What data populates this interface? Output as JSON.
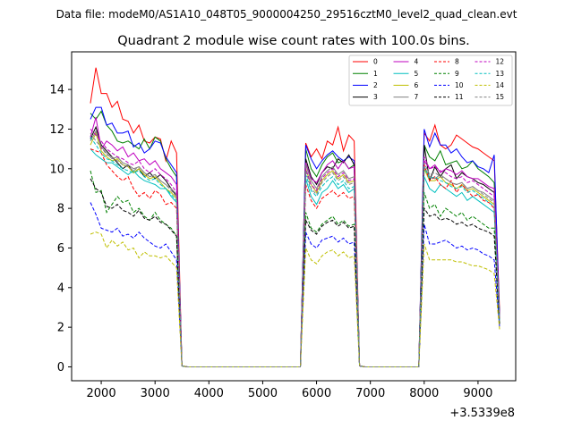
{
  "suptitle": "Data file: modeM0/AS1A10_048T05_9000004250_29516cztM0_level2_quad_clean.evt",
  "chart_data": {
    "type": "line",
    "title": "Quadrant 2 module wise count rates with 100.0s bins.",
    "xlabel": "",
    "ylabel": "",
    "x_offset_label": "+3.5339e8",
    "xlim": [
      1450,
      9700
    ],
    "ylim": [
      -0.7,
      15.9
    ],
    "xticks": [
      2000,
      3000,
      4000,
      5000,
      6000,
      7000,
      8000,
      9000
    ],
    "yticks": [
      0,
      2,
      4,
      6,
      8,
      10,
      12,
      14
    ],
    "legend_position": "top-right",
    "x": [
      1800,
      1900,
      2000,
      2100,
      2200,
      2300,
      2400,
      2500,
      2600,
      2700,
      2800,
      2900,
      3000,
      3100,
      3200,
      3300,
      3400,
      3500,
      3600,
      3700,
      5700,
      5800,
      5900,
      6000,
      6100,
      6200,
      6300,
      6400,
      6500,
      6600,
      6700,
      6800,
      6900,
      7000,
      7900,
      8000,
      8100,
      8200,
      8300,
      8400,
      8500,
      8600,
      8700,
      8800,
      8900,
      9000,
      9100,
      9200,
      9300,
      9400
    ],
    "series": [
      {
        "name": "0",
        "color": "#ff0000",
        "dash": "solid",
        "values": [
          13.3,
          15.1,
          13.8,
          13.8,
          13.1,
          13.4,
          12.5,
          12.4,
          11.8,
          12.2,
          11.4,
          11.3,
          11.6,
          11.5,
          10.4,
          11.4,
          10.8,
          0.05,
          0,
          0,
          0,
          11.3,
          10.6,
          11.0,
          10.5,
          11.4,
          11.2,
          12.1,
          10.9,
          11.7,
          11.4,
          0.05,
          0,
          0,
          0,
          11.8,
          11.4,
          12.2,
          11.2,
          11.0,
          11.2,
          11.7,
          11.5,
          11.3,
          11.1,
          11.0,
          10.8,
          10.6,
          10.4,
          2.8
        ]
      },
      {
        "name": "1",
        "color": "#008000",
        "dash": "solid",
        "values": [
          12.8,
          12.5,
          12.9,
          12.2,
          11.9,
          11.4,
          11.3,
          11.4,
          11.2,
          11.0,
          11.5,
          11.0,
          11.6,
          11.4,
          10.5,
          10.0,
          9.6,
          0.05,
          0,
          0,
          0,
          11.0,
          10.0,
          9.6,
          10.2,
          10.6,
          10.8,
          10.3,
          10.4,
          10.0,
          10.2,
          0.05,
          0,
          0,
          0,
          11.2,
          10.6,
          10.4,
          10.9,
          10.2,
          10.3,
          10.4,
          10.0,
          10.1,
          10.4,
          10.0,
          9.8,
          9.6,
          9.3,
          2.6
        ]
      },
      {
        "name": "2",
        "color": "#0000ff",
        "dash": "solid",
        "values": [
          12.5,
          13.1,
          13.1,
          12.2,
          12.3,
          11.8,
          11.8,
          11.9,
          11.1,
          11.3,
          10.8,
          11.0,
          11.4,
          11.3,
          10.6,
          10.2,
          9.8,
          0.05,
          0,
          0,
          0,
          11.2,
          10.5,
          10.0,
          10.4,
          10.7,
          10.9,
          10.6,
          10.4,
          10.6,
          10.4,
          0.05,
          0,
          0,
          0,
          12.0,
          11.1,
          11.8,
          11.2,
          11.2,
          10.8,
          11.0,
          10.6,
          10.3,
          10.4,
          10.1,
          10.0,
          9.8,
          10.7,
          2.5
        ]
      },
      {
        "name": "3",
        "color": "#000000",
        "dash": "solid",
        "values": [
          11.5,
          12.1,
          11.2,
          10.9,
          10.6,
          10.3,
          10.0,
          10.2,
          9.8,
          10.0,
          9.6,
          9.8,
          9.5,
          9.7,
          9.4,
          9.0,
          8.6,
          0.05,
          0,
          0,
          0,
          10.5,
          9.6,
          9.2,
          9.8,
          10.1,
          10.0,
          10.5,
          10.3,
          10.7,
          10.2,
          0.05,
          0,
          0,
          0,
          11.2,
          9.4,
          10.1,
          9.6,
          10.0,
          10.2,
          9.5,
          9.8,
          9.6,
          9.5,
          9.3,
          9.2,
          9.0,
          8.8,
          2.4
        ]
      },
      {
        "name": "4",
        "color": "#bf00bf",
        "dash": "solid",
        "values": [
          11.6,
          12.6,
          11.0,
          11.4,
          11.2,
          10.9,
          11.1,
          10.6,
          10.8,
          10.4,
          10.5,
          10.2,
          10.4,
          10.0,
          9.8,
          9.6,
          9.2,
          0.05,
          0,
          0,
          0,
          10.3,
          9.5,
          9.3,
          9.8,
          10.2,
          10.4,
          10.0,
          10.4,
          10.0,
          10.1,
          0.05,
          0,
          0,
          0,
          10.4,
          10.0,
          10.2,
          9.8,
          10.0,
          9.9,
          9.7,
          9.9,
          9.6,
          9.5,
          9.5,
          9.3,
          9.1,
          9.0,
          2.5
        ]
      },
      {
        "name": "5",
        "color": "#00bfbf",
        "dash": "solid",
        "values": [
          11.0,
          10.7,
          10.5,
          10.3,
          10.3,
          10.1,
          9.9,
          9.7,
          9.9,
          9.6,
          9.4,
          9.3,
          9.2,
          9.0,
          9.0,
          8.6,
          8.3,
          0.05,
          0,
          0,
          0,
          9.5,
          8.6,
          8.2,
          8.8,
          9.0,
          9.4,
          9.0,
          9.2,
          8.8,
          9.0,
          0.05,
          0,
          0,
          0,
          9.6,
          9.0,
          8.8,
          9.2,
          9.0,
          8.8,
          8.6,
          8.8,
          8.4,
          8.6,
          8.4,
          8.2,
          8.0,
          7.8,
          2.3
        ]
      },
      {
        "name": "6",
        "color": "#bfbf00",
        "dash": "solid",
        "values": [
          11.2,
          11.8,
          10.9,
          10.6,
          10.4,
          10.5,
          10.2,
          10.1,
          9.8,
          10.0,
          9.7,
          9.5,
          9.6,
          9.3,
          9.0,
          8.8,
          8.5,
          0.05,
          0,
          0,
          0,
          10.0,
          9.2,
          8.8,
          9.4,
          9.7,
          9.9,
          9.5,
          9.7,
          9.3,
          9.4,
          0.05,
          0,
          0,
          0,
          10.0,
          9.4,
          9.4,
          9.6,
          9.3,
          9.2,
          9.0,
          9.2,
          8.9,
          9.0,
          8.8,
          8.6,
          8.4,
          8.2,
          2.3
        ]
      },
      {
        "name": "7",
        "color": "#808080",
        "dash": "solid",
        "values": [
          11.4,
          11.9,
          11.1,
          10.8,
          10.5,
          10.6,
          10.3,
          10.2,
          10.0,
          10.1,
          9.8,
          9.6,
          9.7,
          9.4,
          9.2,
          9.0,
          8.7,
          0.05,
          0,
          0,
          0,
          10.2,
          9.4,
          9.0,
          9.6,
          9.9,
          10.1,
          9.7,
          9.9,
          9.5,
          9.6,
          0.05,
          0,
          0,
          0,
          10.1,
          9.6,
          9.5,
          9.7,
          9.5,
          9.3,
          9.2,
          9.3,
          9.0,
          9.1,
          8.9,
          8.8,
          8.6,
          8.4,
          2.4
        ]
      },
      {
        "name": "8",
        "color": "#ff0000",
        "dash": "dashed",
        "values": [
          11.0,
          10.9,
          10.8,
          10.2,
          9.9,
          9.6,
          9.4,
          9.6,
          9.0,
          8.6,
          8.8,
          8.5,
          8.9,
          8.7,
          8.2,
          8.3,
          8.0,
          0.05,
          0,
          0,
          0,
          9.2,
          8.4,
          8.0,
          8.5,
          8.7,
          8.9,
          8.6,
          8.8,
          8.5,
          8.6,
          0.05,
          0,
          0,
          0,
          10.2,
          9.4,
          9.6,
          9.2,
          9.0,
          9.4,
          8.8,
          9.2,
          8.9,
          8.6,
          8.7,
          8.4,
          8.3,
          8.0,
          2.3
        ]
      },
      {
        "name": "9",
        "color": "#008000",
        "dash": "dashed",
        "values": [
          9.9,
          8.8,
          8.9,
          7.8,
          8.2,
          8.6,
          8.3,
          8.4,
          7.8,
          8.0,
          7.6,
          7.4,
          7.8,
          7.4,
          7.2,
          7.0,
          6.6,
          0.05,
          0,
          0,
          0,
          7.8,
          7.0,
          6.8,
          7.2,
          7.4,
          7.6,
          7.2,
          7.4,
          7.1,
          7.2,
          0.05,
          0,
          0,
          0,
          8.8,
          8.0,
          8.2,
          7.6,
          8.0,
          7.8,
          7.6,
          7.8,
          7.4,
          7.6,
          7.4,
          7.2,
          7.0,
          7.0,
          2.2
        ]
      },
      {
        "name": "10",
        "color": "#0000ff",
        "dash": "dashed",
        "values": [
          8.3,
          7.7,
          7.0,
          6.9,
          6.8,
          7.0,
          6.6,
          6.7,
          6.5,
          6.8,
          6.5,
          6.3,
          6.1,
          6.0,
          6.2,
          5.8,
          5.4,
          0.05,
          0,
          0,
          0,
          6.8,
          6.2,
          6.0,
          6.4,
          6.5,
          6.6,
          6.3,
          6.5,
          6.2,
          6.3,
          0.05,
          0,
          0,
          0,
          7.2,
          6.2,
          6.2,
          6.3,
          6.4,
          6.2,
          6.0,
          6.1,
          5.9,
          6.0,
          5.9,
          5.7,
          5.6,
          5.4,
          2.0
        ]
      },
      {
        "name": "11",
        "color": "#000000",
        "dash": "dashed",
        "values": [
          9.5,
          9.0,
          8.8,
          8.1,
          8.0,
          8.2,
          7.9,
          7.8,
          7.6,
          7.9,
          7.5,
          7.4,
          7.6,
          7.3,
          7.2,
          6.9,
          6.6,
          0.05,
          0,
          0,
          0,
          7.4,
          6.9,
          6.7,
          7.1,
          7.3,
          7.4,
          7.1,
          7.3,
          7.0,
          7.1,
          0.05,
          0,
          0,
          0,
          8.0,
          7.6,
          7.7,
          7.4,
          7.5,
          7.4,
          7.2,
          7.3,
          7.1,
          7.2,
          7.0,
          6.9,
          6.8,
          6.6,
          2.1
        ]
      },
      {
        "name": "12",
        "color": "#bf00bf",
        "dash": "dashed",
        "values": [
          12.0,
          11.7,
          11.4,
          11.0,
          10.8,
          10.6,
          10.5,
          10.3,
          10.2,
          10.4,
          10.0,
          9.8,
          10.0,
          9.7,
          9.5,
          9.2,
          8.8,
          0.05,
          0,
          0,
          0,
          10.0,
          9.2,
          8.9,
          9.5,
          9.8,
          10.0,
          9.6,
          9.8,
          9.4,
          9.5,
          0.05,
          0,
          0,
          0,
          10.6,
          10.0,
          10.1,
          9.9,
          9.8,
          9.6,
          9.5,
          9.6,
          9.3,
          9.4,
          9.2,
          9.0,
          8.8,
          8.6,
          2.4
        ]
      },
      {
        "name": "13",
        "color": "#00bfbf",
        "dash": "dashed",
        "values": [
          11.6,
          11.2,
          10.8,
          10.5,
          10.4,
          10.2,
          10.0,
          9.9,
          9.8,
          9.9,
          9.6,
          9.4,
          9.5,
          9.2,
          9.0,
          8.7,
          8.4,
          0.05,
          0,
          0,
          0,
          9.7,
          8.9,
          8.6,
          9.1,
          9.4,
          9.6,
          9.2,
          9.4,
          9.0,
          9.1,
          0.05,
          0,
          0,
          0,
          10.1,
          9.5,
          9.6,
          9.4,
          9.3,
          9.1,
          9.0,
          9.1,
          8.8,
          8.9,
          8.7,
          8.5,
          8.3,
          8.1,
          2.3
        ]
      },
      {
        "name": "14",
        "color": "#bfbf00",
        "dash": "dashed",
        "values": [
          6.7,
          6.8,
          6.7,
          6.0,
          6.4,
          6.1,
          6.3,
          5.9,
          6.0,
          5.5,
          5.8,
          5.6,
          5.6,
          5.5,
          5.6,
          5.3,
          5.0,
          0.05,
          0,
          0,
          0,
          6.0,
          5.4,
          5.2,
          5.6,
          5.8,
          5.9,
          5.6,
          5.8,
          5.5,
          5.6,
          0.05,
          0,
          0,
          0,
          6.2,
          5.4,
          5.4,
          5.4,
          5.4,
          5.4,
          5.3,
          5.3,
          5.2,
          5.1,
          5.1,
          5.0,
          4.9,
          4.7,
          1.9
        ]
      },
      {
        "name": "15",
        "color": "#808080",
        "dash": "dashed",
        "values": [
          11.8,
          11.4,
          11.1,
          10.7,
          10.6,
          10.4,
          10.2,
          10.1,
          9.9,
          10.1,
          9.8,
          9.6,
          9.7,
          9.4,
          9.2,
          8.9,
          8.6,
          0.05,
          0,
          0,
          0,
          9.9,
          9.0,
          8.7,
          9.3,
          9.6,
          9.8,
          9.4,
          9.6,
          9.2,
          9.3,
          0.05,
          0,
          0,
          0,
          10.3,
          9.7,
          9.8,
          9.6,
          9.5,
          9.3,
          9.2,
          9.3,
          9.0,
          9.1,
          8.9,
          8.7,
          8.5,
          8.3,
          2.3
        ]
      }
    ]
  }
}
